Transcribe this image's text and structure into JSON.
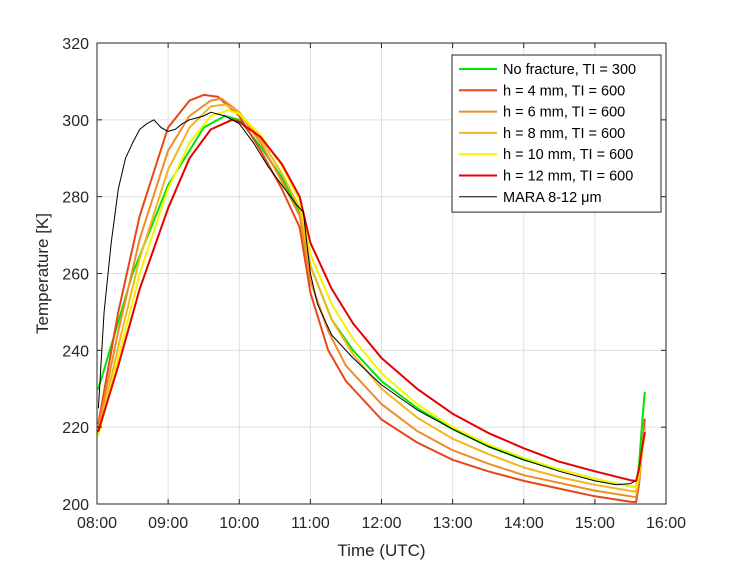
{
  "chart_data": {
    "type": "line",
    "xlabel": "Time (UTC)",
    "ylabel": "Temperature [K]",
    "xlim": [
      8,
      16
    ],
    "ylim": [
      200,
      320
    ],
    "x_ticks": [
      8,
      9,
      10,
      11,
      12,
      13,
      14,
      15,
      16
    ],
    "x_tick_labels": [
      "08:00",
      "09:00",
      "10:00",
      "11:00",
      "12:00",
      "13:00",
      "14:00",
      "15:00",
      "16:00"
    ],
    "y_ticks": [
      200,
      220,
      240,
      260,
      280,
      300,
      320
    ],
    "y_tick_labels": [
      "200",
      "220",
      "240",
      "260",
      "280",
      "300",
      "320"
    ],
    "grid": true,
    "legend_position": "top-right",
    "series": [
      {
        "name": "No fracture, TI = 300",
        "color": "#00e600",
        "x": [
          8.02,
          8.5,
          9.0,
          9.5,
          9.8,
          10.0,
          10.3,
          10.6,
          10.85,
          11.0,
          11.3,
          11.6,
          12.0,
          12.5,
          13.0,
          13.5,
          14.0,
          14.5,
          15.0,
          15.5,
          15.58,
          15.62,
          15.66,
          15.7
        ],
        "y": [
          230,
          260,
          283,
          298,
          301,
          300,
          293,
          285,
          276,
          262,
          248,
          240,
          232,
          225,
          219.5,
          215,
          211.5,
          209,
          206.5,
          204.6,
          204.5,
          210,
          220,
          229
        ]
      },
      {
        "name": "h = 4 mm, TI = 600",
        "color": "#e8461a",
        "x": [
          8.02,
          8.3,
          8.6,
          9.0,
          9.3,
          9.5,
          9.7,
          10.0,
          10.3,
          10.6,
          10.85,
          11.0,
          11.25,
          11.5,
          12.0,
          12.5,
          13.0,
          13.5,
          14.0,
          14.5,
          15.0,
          15.5,
          15.58,
          15.62,
          15.66,
          15.7
        ],
        "y": [
          221,
          250,
          275,
          298,
          305,
          306.5,
          306,
          301,
          292,
          282,
          272,
          255,
          240,
          232,
          222,
          216,
          211.5,
          208.5,
          206,
          204,
          202,
          200.6,
          200.5,
          205,
          213,
          222
        ]
      },
      {
        "name": "h = 6 mm, TI = 600",
        "color": "#ee8c26",
        "x": [
          8.02,
          8.3,
          8.6,
          9.0,
          9.3,
          9.6,
          9.75,
          10.0,
          10.3,
          10.6,
          10.85,
          11.0,
          11.25,
          11.5,
          12.0,
          12.5,
          13.0,
          13.5,
          14.0,
          14.5,
          15.0,
          15.5,
          15.58,
          15.62,
          15.66,
          15.7
        ],
        "y": [
          220,
          245,
          269,
          292,
          301,
          305,
          305.5,
          302,
          294,
          284,
          275,
          258,
          245,
          236,
          226,
          219,
          214,
          210.5,
          207.5,
          205.5,
          203.5,
          202,
          201.8,
          206,
          213,
          220
        ]
      },
      {
        "name": "h = 8 mm, TI = 600",
        "color": "#f2b71f",
        "x": [
          8.02,
          8.3,
          8.6,
          9.0,
          9.3,
          9.6,
          9.8,
          10.0,
          10.3,
          10.6,
          10.85,
          11.0,
          11.3,
          11.6,
          12.0,
          12.5,
          13.0,
          13.5,
          14.0,
          14.5,
          15.0,
          15.5,
          15.58,
          15.62,
          15.66,
          15.7
        ],
        "y": [
          218.5,
          241,
          264,
          287,
          298,
          303.5,
          304,
          302,
          295,
          286,
          277,
          262,
          248,
          239,
          230,
          222.5,
          217,
          213,
          209.5,
          207,
          205,
          203.4,
          203.2,
          207,
          213,
          219
        ]
      },
      {
        "name": "h = 10 mm, TI = 600",
        "color": "#f5f500",
        "x": [
          8.02,
          8.3,
          8.6,
          9.0,
          9.3,
          9.6,
          9.85,
          10.0,
          10.3,
          10.6,
          10.85,
          11.0,
          11.3,
          11.6,
          12.0,
          12.5,
          13.0,
          13.5,
          14.0,
          14.5,
          15.0,
          15.5,
          15.58,
          15.62,
          15.66,
          15.7
        ],
        "y": [
          218,
          238,
          260,
          282,
          294,
          301,
          302.5,
          301.5,
          296,
          288,
          279,
          265,
          252,
          243,
          234,
          226,
          220,
          215.5,
          212,
          209,
          206.5,
          204.6,
          204.4,
          208,
          213,
          218.5
        ]
      },
      {
        "name": "h = 12 mm, TI = 600",
        "color": "#e60000",
        "x": [
          8.02,
          8.3,
          8.6,
          9.0,
          9.3,
          9.6,
          9.9,
          10.0,
          10.3,
          10.6,
          10.85,
          11.0,
          11.3,
          11.6,
          12.0,
          12.5,
          13.0,
          13.5,
          14.0,
          14.5,
          15.0,
          15.5,
          15.58,
          15.62,
          15.66,
          15.7
        ],
        "y": [
          219,
          236,
          256,
          277,
          290,
          297.5,
          300,
          299.5,
          295.5,
          288.5,
          280,
          268,
          256,
          247,
          238,
          230,
          223.5,
          218.5,
          214.5,
          211,
          208.5,
          206.2,
          206,
          209,
          214,
          218.5
        ]
      },
      {
        "name": "MARA 8-12 μm",
        "color": "#000000",
        "x": [
          8.02,
          8.1,
          8.2,
          8.3,
          8.4,
          8.5,
          8.6,
          8.7,
          8.8,
          8.85,
          8.9,
          9.0,
          9.1,
          9.2,
          9.3,
          9.4,
          9.5,
          9.6,
          9.7,
          9.8,
          9.9,
          10.0,
          10.2,
          10.4,
          10.6,
          10.8,
          10.9,
          10.95,
          11.0,
          11.1,
          11.3,
          11.6,
          12.0,
          12.5,
          13.0,
          13.5,
          14.0,
          14.5,
          15.0,
          15.3,
          15.5,
          15.55
        ],
        "y": [
          225,
          250,
          268,
          282,
          290,
          294,
          297.5,
          299,
          300,
          299,
          298,
          297,
          297.5,
          299,
          300,
          300.5,
          301,
          302,
          301.5,
          301,
          300,
          299,
          294,
          288,
          283,
          278,
          276,
          268,
          260,
          252,
          244,
          238,
          231,
          224.5,
          219.5,
          215,
          211.5,
          208.5,
          206,
          205,
          205.3,
          205.8
        ]
      }
    ]
  }
}
